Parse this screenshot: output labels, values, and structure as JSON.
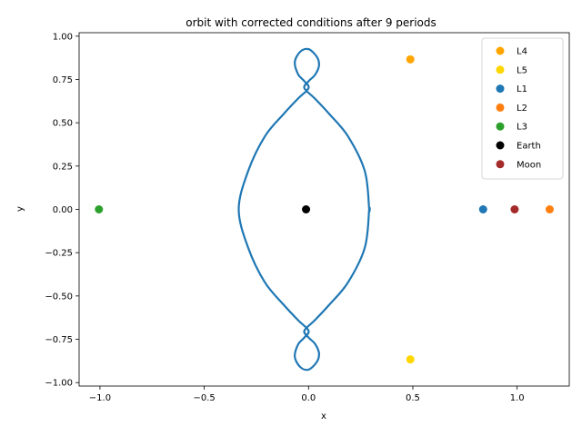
{
  "chart_data": {
    "type": "scatter",
    "title": "orbit with corrected conditions after 9 periods",
    "xlabel": "x",
    "ylabel": "y",
    "xlim": [
      -1.1,
      1.25
    ],
    "ylim": [
      -1.02,
      1.02
    ],
    "x_ticks": [
      -1.0,
      -0.5,
      0.0,
      0.5,
      1.0
    ],
    "x_tick_labels": [
      "−1.0",
      "−0.5",
      "0.0",
      "0.5",
      "1.0"
    ],
    "y_ticks": [
      -1.0,
      -0.75,
      -0.5,
      -0.25,
      0.0,
      0.25,
      0.5,
      0.75,
      1.0
    ],
    "y_tick_labels": [
      "−1.00",
      "−0.75",
      "−0.50",
      "−0.25",
      "0.00",
      "0.25",
      "0.50",
      "0.75",
      "1.00"
    ],
    "grid": false,
    "legend_position": "top-right",
    "orbit": {
      "color": "#1f77b4",
      "points": [
        [
          -0.01,
          0.0
        ],
        [
          0.291,
          0.0
        ],
        [
          0.27,
          0.22
        ],
        [
          0.19,
          0.42
        ],
        [
          0.1,
          0.55
        ],
        [
          0.03,
          0.64
        ],
        [
          -0.02,
          0.7
        ],
        [
          0.0,
          0.74
        ],
        [
          0.03,
          0.775
        ],
        [
          0.05,
          0.83
        ],
        [
          0.04,
          0.88
        ],
        [
          0.0,
          0.925
        ],
        [
          -0.04,
          0.91
        ],
        [
          -0.066,
          0.85
        ],
        [
          -0.05,
          0.78
        ],
        [
          -0.02,
          0.74
        ],
        [
          0.0,
          0.7
        ],
        [
          -0.05,
          0.64
        ],
        [
          -0.12,
          0.55
        ],
        [
          -0.21,
          0.42
        ],
        [
          -0.29,
          0.22
        ],
        [
          -0.335,
          0.0
        ],
        [
          -0.29,
          -0.22
        ],
        [
          -0.21,
          -0.42
        ],
        [
          -0.12,
          -0.55
        ],
        [
          -0.05,
          -0.64
        ],
        [
          0.0,
          -0.7
        ],
        [
          -0.02,
          -0.74
        ],
        [
          -0.05,
          -0.78
        ],
        [
          -0.066,
          -0.85
        ],
        [
          -0.04,
          -0.91
        ],
        [
          0.0,
          -0.925
        ],
        [
          0.04,
          -0.88
        ],
        [
          0.05,
          -0.83
        ],
        [
          0.03,
          -0.775
        ],
        [
          0.0,
          -0.74
        ],
        [
          -0.02,
          -0.7
        ],
        [
          0.03,
          -0.64
        ],
        [
          0.1,
          -0.55
        ],
        [
          0.19,
          -0.42
        ],
        [
          0.27,
          -0.22
        ],
        [
          0.291,
          0.0
        ]
      ]
    },
    "series": [
      {
        "name": "L4",
        "color": "#ffa500",
        "x": 0.488,
        "y": 0.866
      },
      {
        "name": "L5",
        "color": "#ffd700",
        "x": 0.488,
        "y": -0.866
      },
      {
        "name": "L1",
        "color": "#1f77b4",
        "x": 0.837,
        "y": 0.0
      },
      {
        "name": "L2",
        "color": "#ff7f0e",
        "x": 1.156,
        "y": 0.0
      },
      {
        "name": "L3",
        "color": "#2ca02c",
        "x": -1.005,
        "y": 0.0
      },
      {
        "name": "Earth",
        "color": "#000000",
        "x": -0.012,
        "y": 0.0
      },
      {
        "name": "Moon",
        "color": "#a52a2a",
        "x": 0.988,
        "y": 0.0
      }
    ]
  }
}
